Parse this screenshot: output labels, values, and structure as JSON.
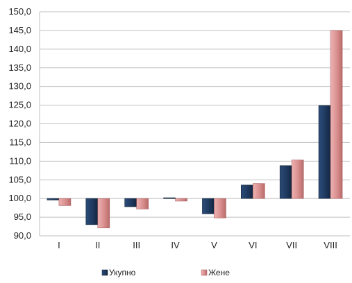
{
  "chart_data": {
    "type": "bar",
    "baseline": 100,
    "categories": [
      "I",
      "II",
      "III",
      "IV",
      "V",
      "VI",
      "VII",
      "VIII"
    ],
    "series": [
      {
        "name": "Укупно",
        "color": "#1F3A5F",
        "values": [
          99.6,
          93.0,
          97.8,
          100.2,
          95.9,
          103.6,
          108.8,
          124.9
        ]
      },
      {
        "name": "Жене",
        "color": "#D98E8E",
        "values": [
          98.1,
          92.1,
          97.2,
          99.3,
          94.8,
          104.0,
          110.3,
          145.0
        ]
      }
    ],
    "ylim": [
      90,
      150
    ],
    "ytick_step": 5,
    "ytick_labels": [
      "90,0",
      "95,0",
      "100,0",
      "105,0",
      "110,0",
      "115,0",
      "120,0",
      "125,0",
      "130,0",
      "135,0",
      "140,0",
      "145,0",
      "150,0"
    ],
    "grid": true,
    "legend_position": "bottom",
    "title": "",
    "xlabel": "",
    "ylabel": ""
  }
}
